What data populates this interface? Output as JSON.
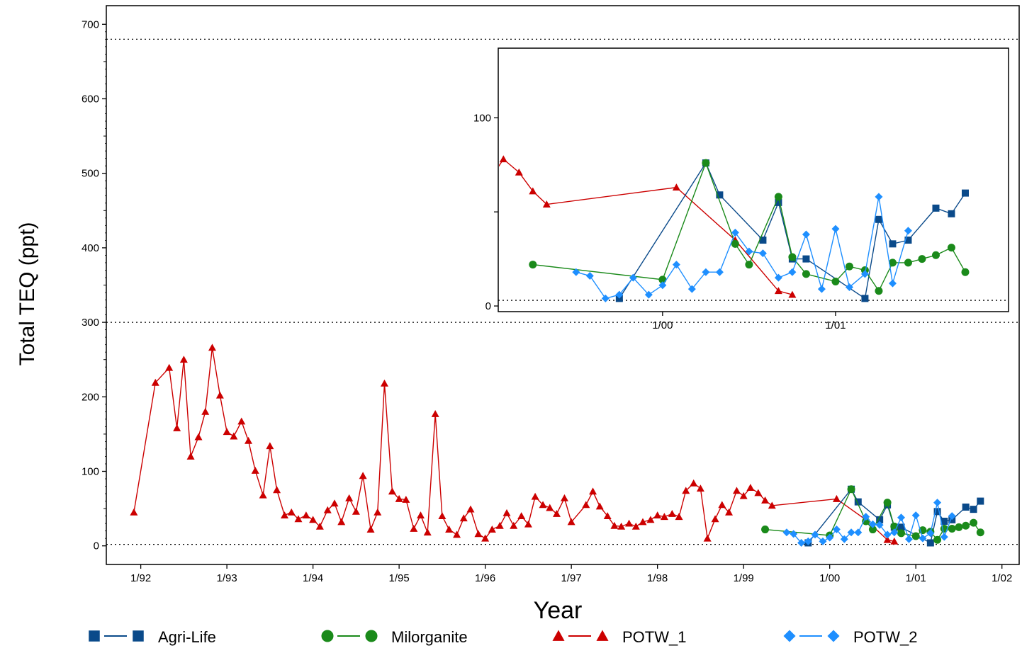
{
  "colors": {
    "agri_life": "#0a4a8a",
    "milorganite": "#1a8a1a",
    "potw1": "#cc0000",
    "potw2": "#1e8fff",
    "axis": "#000000"
  },
  "chart_data": [
    {
      "type": "line",
      "role": "main",
      "ylabel": "Total TEQ (ppt)",
      "xlabel": "Year",
      "ylim": [
        -25,
        725
      ],
      "xlim": [
        1991.6,
        2002.2
      ],
      "y_ticks": [
        0,
        100,
        200,
        300,
        400,
        500,
        600,
        700
      ],
      "x_ticks": [
        {
          "value": 1992,
          "label": "1/92"
        },
        {
          "value": 1993,
          "label": "1/93"
        },
        {
          "value": 1994,
          "label": "1/94"
        },
        {
          "value": 1995,
          "label": "1/95"
        },
        {
          "value": 1996,
          "label": "1/96"
        },
        {
          "value": 1997,
          "label": "1/97"
        },
        {
          "value": 1998,
          "label": "1/98"
        },
        {
          "value": 1999,
          "label": "1/99"
        },
        {
          "value": 2000,
          "label": "1/00"
        },
        {
          "value": 2001,
          "label": "1/01"
        },
        {
          "value": 2002,
          "label": "1/02"
        }
      ],
      "reference_lines": [
        2,
        300,
        680
      ],
      "legend_position": "bottom",
      "series": [
        {
          "name": "POTW_1",
          "color_key": "potw1",
          "marker": "triangle",
          "points": [
            [
              1991.92,
              45
            ],
            [
              1992.17,
              219
            ],
            [
              1992.33,
              239
            ],
            [
              1992.42,
              158
            ],
            [
              1992.5,
              250
            ],
            [
              1992.58,
              120
            ],
            [
              1992.67,
              146
            ],
            [
              1992.75,
              180
            ],
            [
              1992.83,
              266
            ],
            [
              1992.92,
              202
            ],
            [
              1993.0,
              153
            ],
            [
              1993.08,
              147
            ],
            [
              1993.17,
              167
            ],
            [
              1993.25,
              141
            ],
            [
              1993.33,
              101
            ],
            [
              1993.42,
              68
            ],
            [
              1993.5,
              134
            ],
            [
              1993.58,
              75
            ],
            [
              1993.67,
              41
            ],
            [
              1993.75,
              45
            ],
            [
              1993.83,
              36
            ],
            [
              1993.92,
              41
            ],
            [
              1994.0,
              35
            ],
            [
              1994.08,
              26
            ],
            [
              1994.17,
              48
            ],
            [
              1994.25,
              57
            ],
            [
              1994.33,
              32
            ],
            [
              1994.42,
              64
            ],
            [
              1994.5,
              46
            ],
            [
              1994.58,
              94
            ],
            [
              1994.67,
              22
            ],
            [
              1994.75,
              45
            ],
            [
              1994.83,
              218
            ],
            [
              1994.92,
              73
            ],
            [
              1995.0,
              63
            ],
            [
              1995.08,
              62
            ],
            [
              1995.17,
              23
            ],
            [
              1995.25,
              41
            ],
            [
              1995.33,
              18
            ],
            [
              1995.42,
              177
            ],
            [
              1995.5,
              40
            ],
            [
              1995.58,
              22
            ],
            [
              1995.67,
              15
            ],
            [
              1995.75,
              37
            ],
            [
              1995.83,
              49
            ],
            [
              1995.92,
              16
            ],
            [
              1996.0,
              10
            ],
            [
              1996.08,
              22
            ],
            [
              1996.17,
              27
            ],
            [
              1996.25,
              44
            ],
            [
              1996.33,
              27
            ],
            [
              1996.42,
              40
            ],
            [
              1996.5,
              29
            ],
            [
              1996.58,
              66
            ],
            [
              1996.67,
              55
            ],
            [
              1996.75,
              51
            ],
            [
              1996.83,
              43
            ],
            [
              1996.92,
              64
            ],
            [
              1997.0,
              32
            ],
            [
              1997.17,
              55
            ],
            [
              1997.25,
              73
            ],
            [
              1997.33,
              53
            ],
            [
              1997.42,
              40
            ],
            [
              1997.5,
              27
            ],
            [
              1997.58,
              26
            ],
            [
              1997.67,
              30
            ],
            [
              1997.75,
              26
            ],
            [
              1997.83,
              32
            ],
            [
              1997.92,
              35
            ],
            [
              1998.0,
              41
            ],
            [
              1998.08,
              39
            ],
            [
              1998.17,
              43
            ],
            [
              1998.25,
              39
            ],
            [
              1998.33,
              74
            ],
            [
              1998.42,
              84
            ],
            [
              1998.5,
              77
            ],
            [
              1998.58,
              10
            ],
            [
              1998.67,
              36
            ],
            [
              1998.75,
              55
            ],
            [
              1998.83,
              45
            ],
            [
              1998.92,
              74
            ],
            [
              1999.0,
              67
            ],
            [
              1999.08,
              78
            ],
            [
              1999.17,
              71
            ],
            [
              1999.25,
              61
            ],
            [
              1999.33,
              54
            ],
            [
              2000.08,
              63
            ],
            [
              2000.42,
              35
            ],
            [
              2000.67,
              8
            ],
            [
              2000.75,
              6
            ]
          ]
        },
        {
          "name": "Agri-Life",
          "color_key": "agri_life",
          "marker": "square",
          "points": [
            [
              1999.75,
              4
            ],
            [
              2000.25,
              76
            ],
            [
              2000.33,
              59
            ],
            [
              2000.58,
              35
            ],
            [
              2000.67,
              55
            ],
            [
              2000.75,
              25
            ],
            [
              2000.83,
              25
            ],
            [
              2001.17,
              4
            ],
            [
              2001.25,
              46
            ],
            [
              2001.33,
              33
            ],
            [
              2001.42,
              35
            ],
            [
              2001.58,
              52
            ],
            [
              2001.67,
              49
            ],
            [
              2001.75,
              60
            ]
          ]
        },
        {
          "name": "Milorganite",
          "color_key": "milorganite",
          "marker": "circle",
          "points": [
            [
              1999.25,
              22
            ],
            [
              2000.0,
              14
            ],
            [
              2000.25,
              76
            ],
            [
              2000.42,
              33
            ],
            [
              2000.5,
              22
            ],
            [
              2000.67,
              58
            ],
            [
              2000.75,
              26
            ],
            [
              2000.83,
              17
            ],
            [
              2001.0,
              13
            ],
            [
              2001.08,
              21
            ],
            [
              2001.17,
              19
            ],
            [
              2001.25,
              8
            ],
            [
              2001.33,
              23
            ],
            [
              2001.42,
              23
            ],
            [
              2001.5,
              25
            ],
            [
              2001.58,
              27
            ],
            [
              2001.67,
              31
            ],
            [
              2001.75,
              18
            ]
          ]
        },
        {
          "name": "POTW_2",
          "color_key": "potw2",
          "marker": "diamond",
          "points": [
            [
              1999.5,
              18
            ],
            [
              1999.58,
              16
            ],
            [
              1999.67,
              4
            ],
            [
              1999.75,
              6
            ],
            [
              1999.83,
              15
            ],
            [
              1999.92,
              6
            ],
            [
              2000.0,
              11
            ],
            [
              2000.08,
              22
            ],
            [
              2000.17,
              9
            ],
            [
              2000.25,
              18
            ],
            [
              2000.33,
              18
            ],
            [
              2000.42,
              39
            ],
            [
              2000.5,
              29
            ],
            [
              2000.58,
              28
            ],
            [
              2000.67,
              15
            ],
            [
              2000.75,
              18
            ],
            [
              2000.83,
              38
            ],
            [
              2000.92,
              9
            ],
            [
              2001.0,
              41
            ],
            [
              2001.08,
              10
            ],
            [
              2001.17,
              17
            ],
            [
              2001.25,
              58
            ],
            [
              2001.33,
              12
            ],
            [
              2001.42,
              40
            ]
          ]
        }
      ]
    },
    {
      "type": "line",
      "role": "inset",
      "xlim": [
        1999.05,
        2002.0
      ],
      "ylim": [
        -3,
        137
      ],
      "y_ticks": [
        0,
        50,
        100
      ],
      "y_tick_labels": [
        "0",
        "",
        "100"
      ],
      "x_ticks": [
        {
          "value": 2000,
          "label": "1/00"
        },
        {
          "value": 2001,
          "label": "1/01"
        }
      ],
      "reference_lines": [
        3
      ],
      "series_source": "main"
    }
  ],
  "legend": [
    {
      "label": "Agri-Life",
      "color_key": "agri_life",
      "marker": "square"
    },
    {
      "label": "Milorganite",
      "color_key": "milorganite",
      "marker": "circle"
    },
    {
      "label": "POTW_1",
      "color_key": "potw1",
      "marker": "triangle"
    },
    {
      "label": "POTW_2",
      "color_key": "potw2",
      "marker": "diamond"
    }
  ]
}
